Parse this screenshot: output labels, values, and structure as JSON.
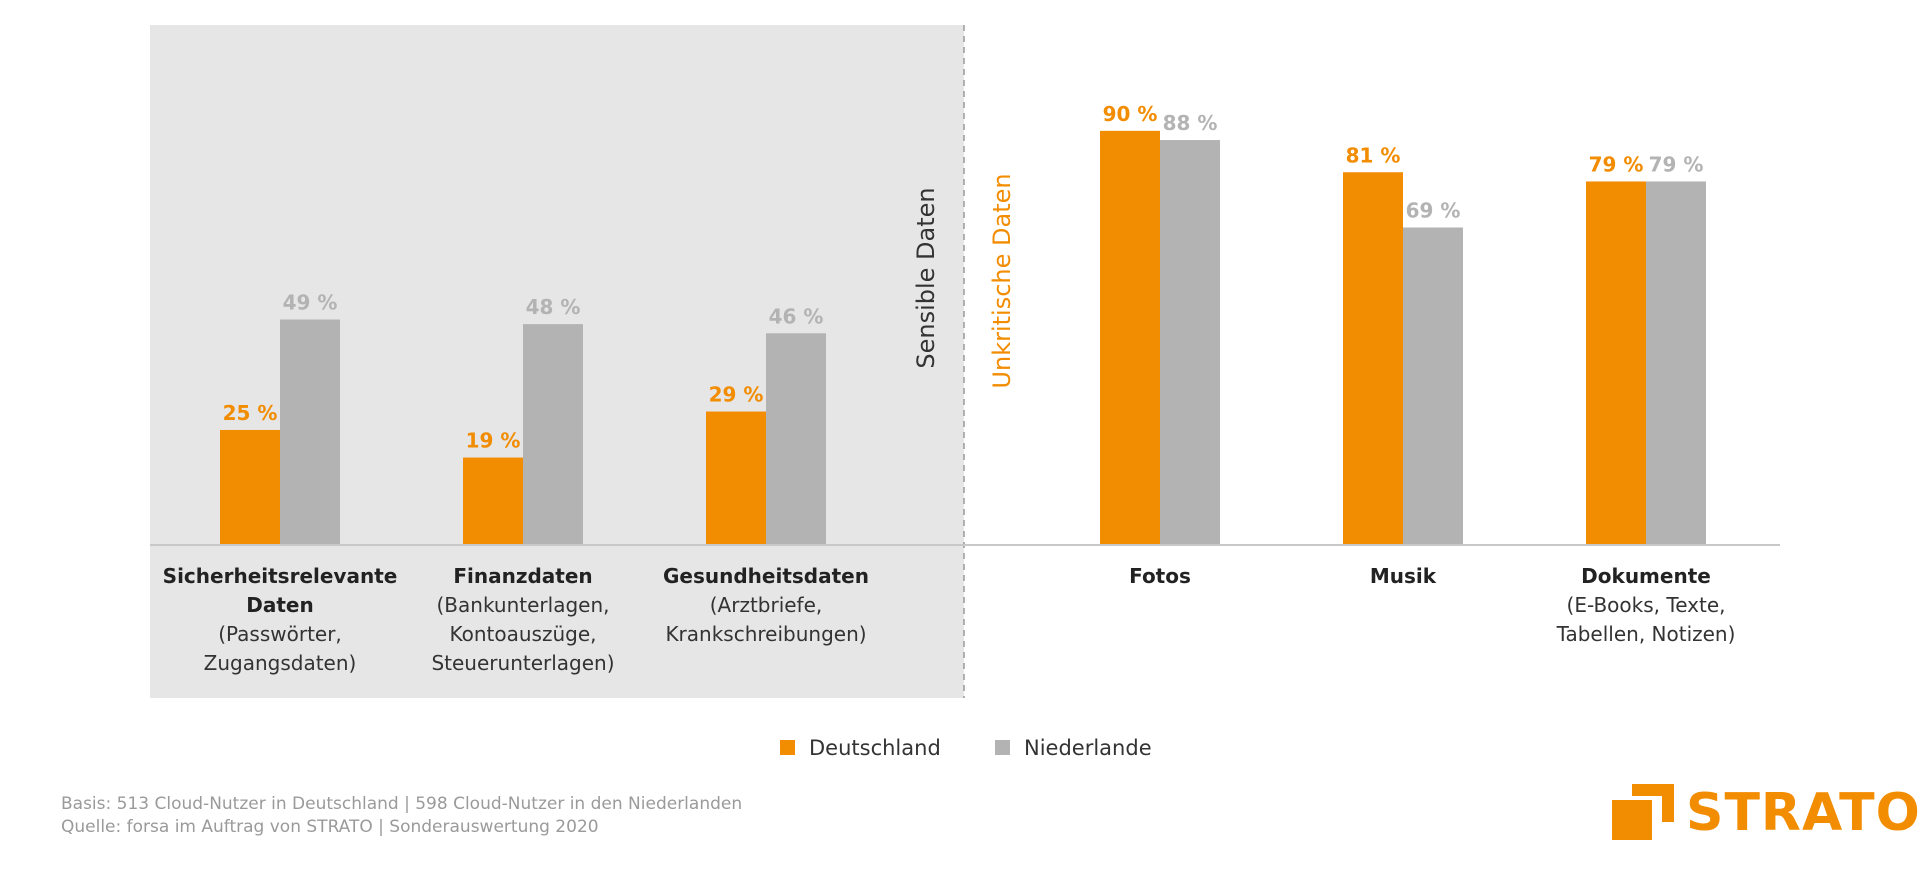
{
  "chart_data": {
    "type": "bar",
    "ylim": [
      0,
      100
    ],
    "grid": false,
    "legend_position": "bottom",
    "colors": {
      "Deutschland": "#f28c00",
      "Niederlande": "#b3b3b3"
    },
    "series": [
      {
        "name": "Deutschland",
        "values": [
          25,
          19,
          29,
          90,
          81,
          79
        ]
      },
      {
        "name": "Niederlande",
        "values": [
          49,
          48,
          46,
          88,
          69,
          79
        ]
      }
    ],
    "categories": [
      {
        "group": "sensitive",
        "lines": [
          {
            "text": "Sicherheitsrelevante",
            "bold": true
          },
          {
            "text": "Daten",
            "bold": true
          },
          {
            "text": "(Passwörter,",
            "bold": false
          },
          {
            "text": "Zugangsdaten)",
            "bold": false
          }
        ]
      },
      {
        "group": "sensitive",
        "lines": [
          {
            "text": "Finanzdaten",
            "bold": true
          },
          {
            "text": "(Bankunterlagen,",
            "bold": false
          },
          {
            "text": "Kontoauszüge,",
            "bold": false
          },
          {
            "text": "Steuerunterlagen)",
            "bold": false
          }
        ]
      },
      {
        "group": "sensitive",
        "lines": [
          {
            "text": "Gesundheitsdaten",
            "bold": true
          },
          {
            "text": "(Arztbriefe,",
            "bold": false
          },
          {
            "text": "Krankschreibungen)",
            "bold": false
          }
        ]
      },
      {
        "group": "uncritical",
        "lines": [
          {
            "text": "Fotos",
            "bold": true
          }
        ]
      },
      {
        "group": "uncritical",
        "lines": [
          {
            "text": "Musik",
            "bold": true
          }
        ]
      },
      {
        "group": "uncritical",
        "lines": [
          {
            "text": "Dokumente",
            "bold": true
          },
          {
            "text": "(E-Books, Texte,",
            "bold": false
          },
          {
            "text": "Tabellen, Notizen)",
            "bold": false
          }
        ]
      }
    ],
    "value_suffix": " %",
    "group_labels": {
      "sensitive": {
        "text": "Sensible Daten",
        "color": "#333333"
      },
      "uncritical": {
        "text": "Unkritische Daten",
        "color": "#f28c00"
      }
    }
  },
  "legend": [
    {
      "label": "Deutschland",
      "color": "#f28c00"
    },
    {
      "label": "Niederlande",
      "color": "#b3b3b3"
    }
  ],
  "footer": {
    "basis": "Basis: 513 Cloud-Nutzer in Deutschland | 598 Cloud-Nutzer in den Niederlanden",
    "source": "Quelle: forsa im Auftrag von STRATO | Sonderauswertung 2020"
  },
  "logo": {
    "text": "STRATO",
    "color": "#f28c00"
  }
}
